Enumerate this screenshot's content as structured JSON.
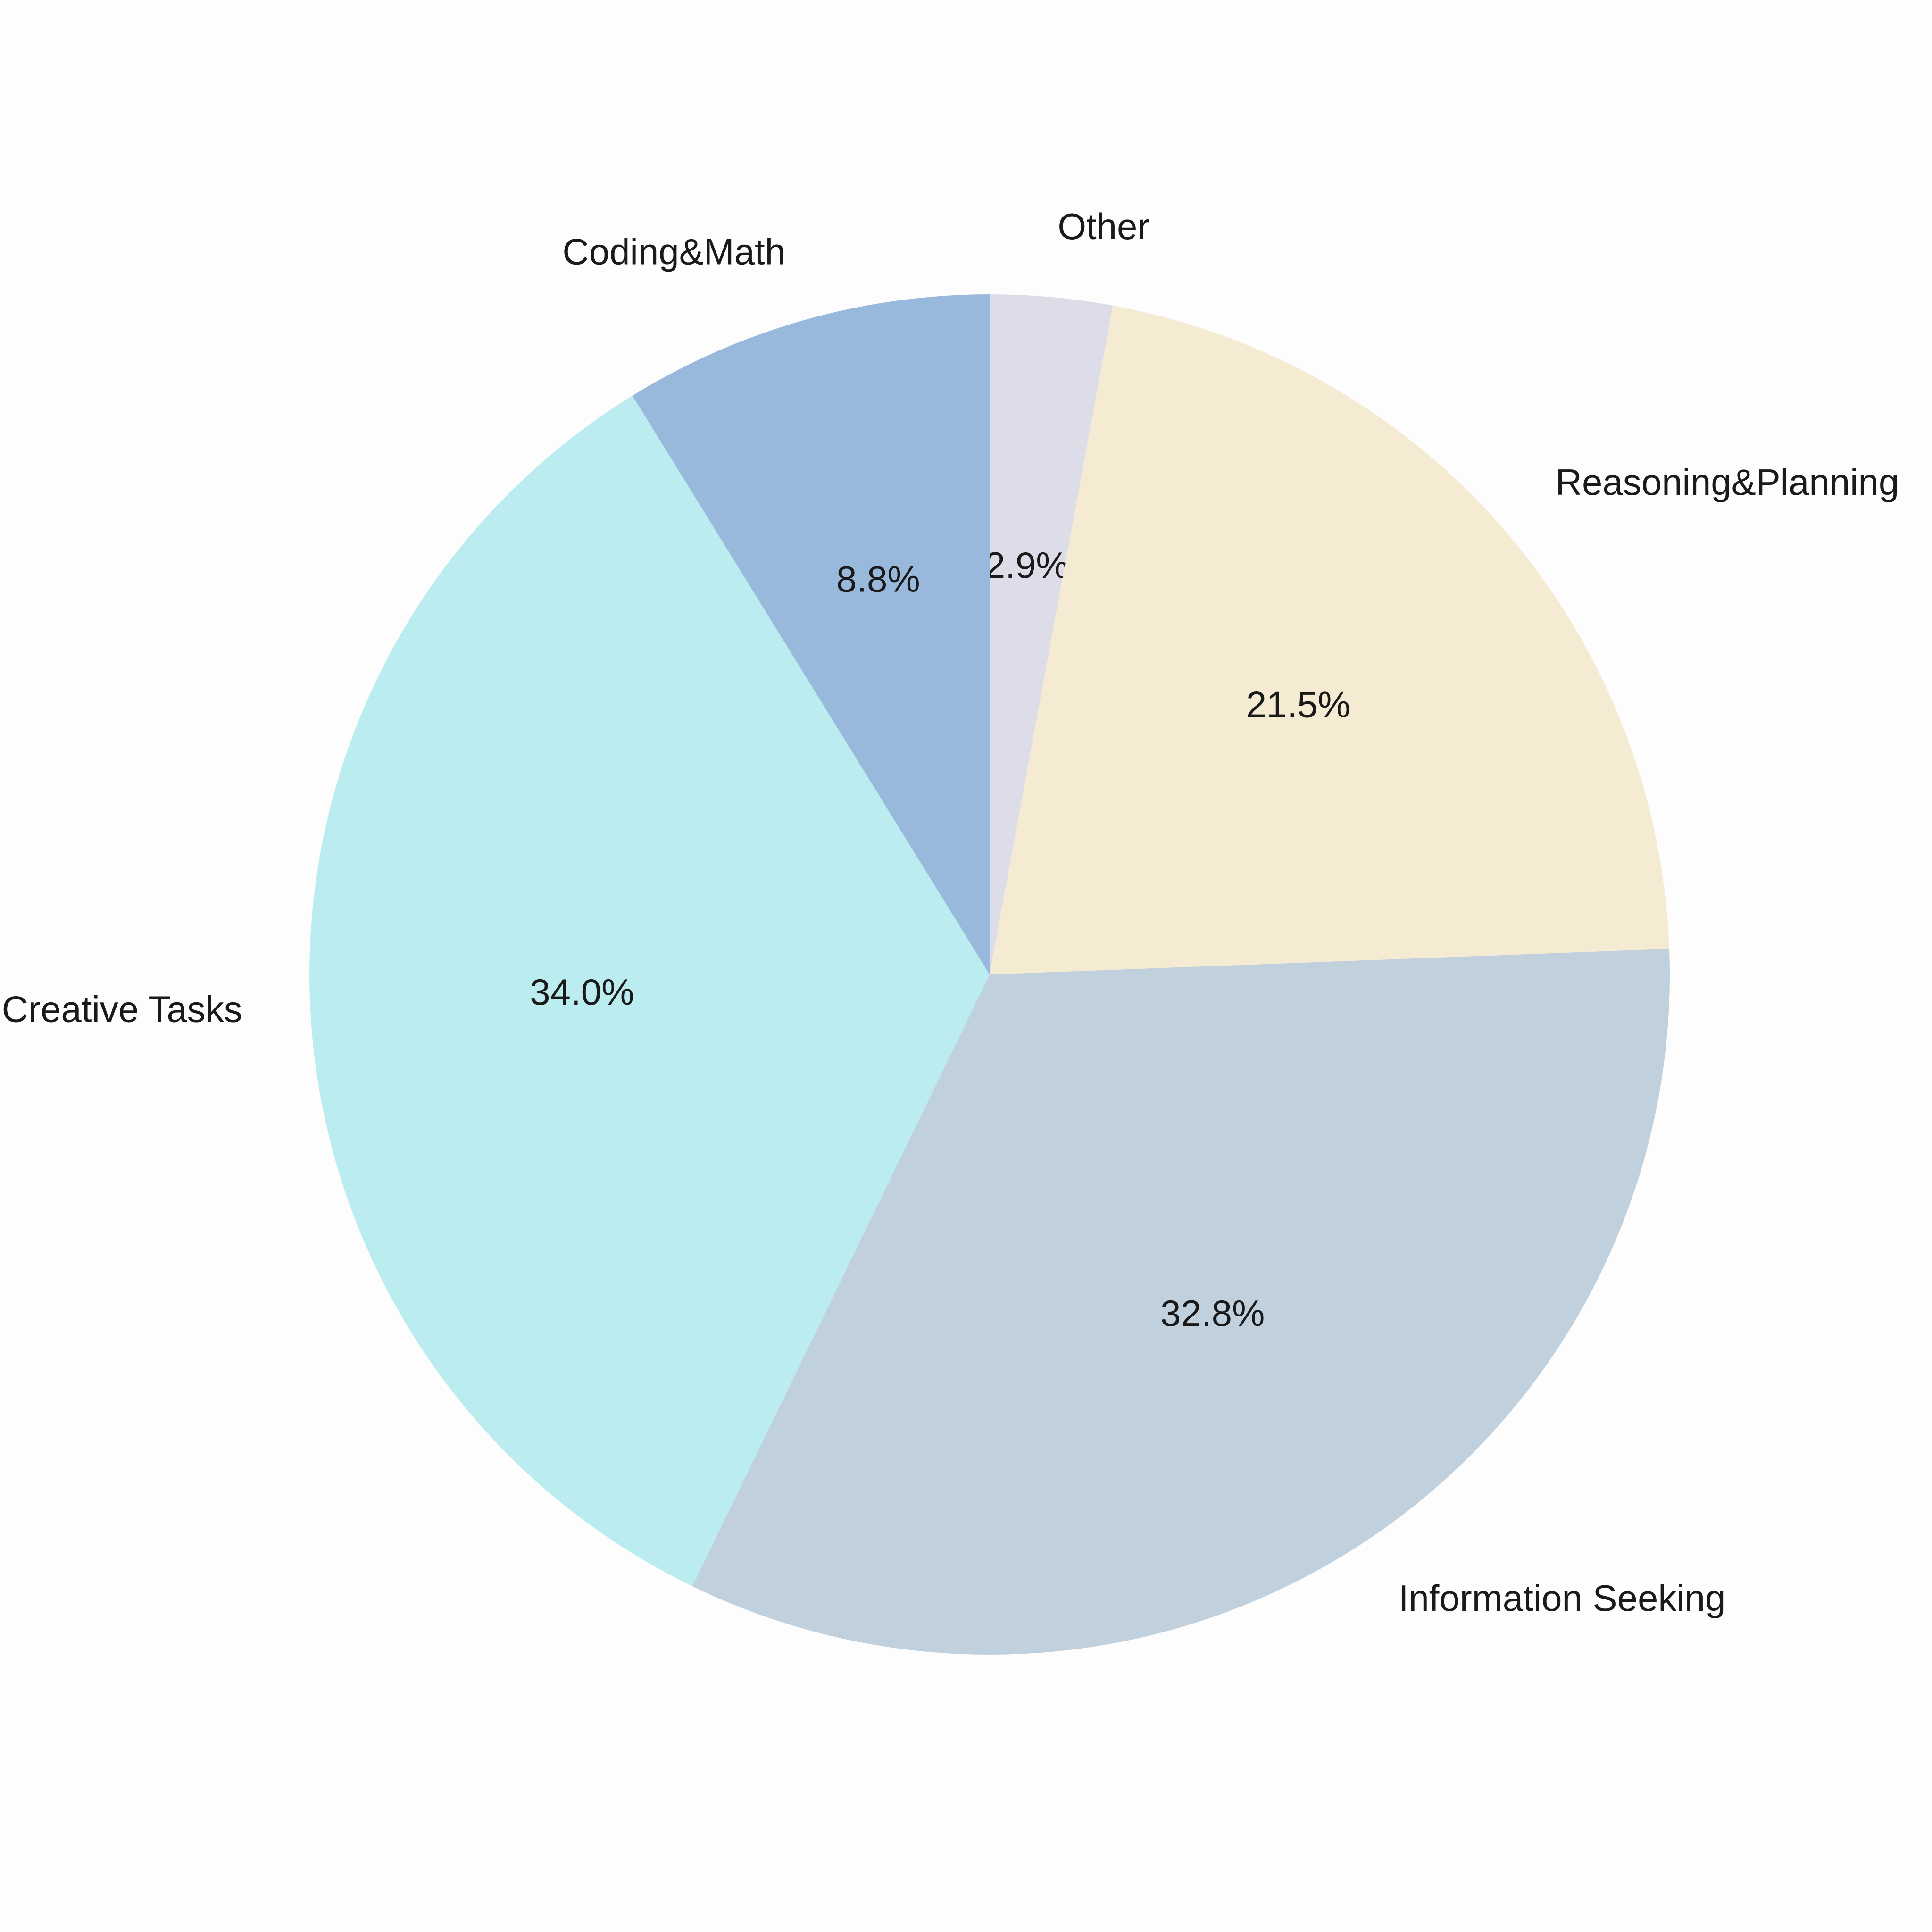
{
  "chart_data": {
    "type": "pie",
    "categories": [
      "Other",
      "Reasoning&Planning",
      "Information Seeking",
      "Creative Tasks",
      "Coding&Math"
    ],
    "values": [
      2.9,
      21.5,
      32.8,
      34.0,
      8.8
    ],
    "value_labels": [
      "2.9%",
      "21.5%",
      "32.8%",
      "34.0%",
      "8.8%"
    ],
    "colors": [
      "#dcdde8",
      "#f5ebd3",
      "#c0d0dd",
      "#bbecf0",
      "#98b8dc"
    ]
  }
}
